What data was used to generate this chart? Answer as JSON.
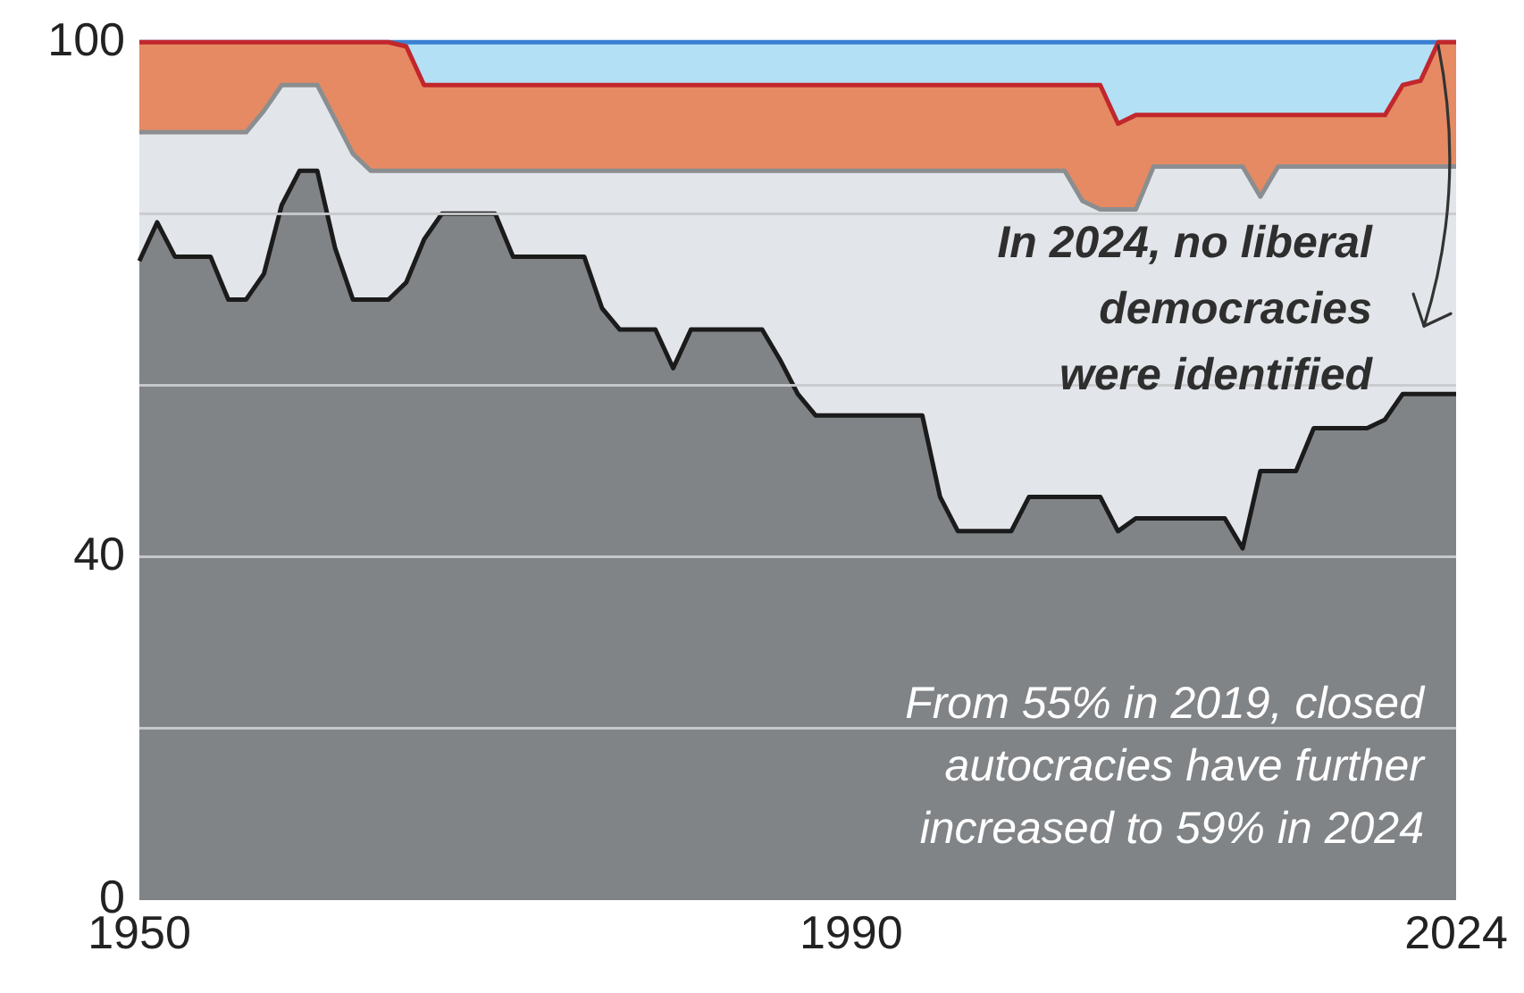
{
  "chart_data": {
    "type": "area",
    "stacked": true,
    "x": [
      1950,
      1951,
      1952,
      1953,
      1954,
      1955,
      1956,
      1957,
      1958,
      1959,
      1960,
      1961,
      1962,
      1963,
      1964,
      1965,
      1966,
      1967,
      1968,
      1969,
      1970,
      1971,
      1972,
      1973,
      1974,
      1975,
      1976,
      1977,
      1978,
      1979,
      1980,
      1981,
      1982,
      1983,
      1984,
      1985,
      1986,
      1987,
      1988,
      1989,
      1990,
      1991,
      1992,
      1993,
      1994,
      1995,
      1996,
      1997,
      1998,
      1999,
      2000,
      2001,
      2002,
      2003,
      2004,
      2005,
      2006,
      2007,
      2008,
      2009,
      2010,
      2011,
      2012,
      2013,
      2014,
      2015,
      2016,
      2017,
      2018,
      2019,
      2020,
      2021,
      2022,
      2023,
      2024
    ],
    "series": [
      {
        "color": "#818487",
        "values": [
          74.5,
          79,
          75,
          75,
          75,
          70,
          70,
          73,
          81,
          85,
          85,
          76,
          70,
          70,
          70,
          72,
          77,
          80,
          80,
          80,
          80,
          75,
          75,
          75,
          75,
          75,
          69,
          66.5,
          66.5,
          66.5,
          62,
          66.5,
          66.5,
          66.5,
          66.5,
          66.5,
          63,
          59,
          56.5,
          56.5,
          56.5,
          56.5,
          56.5,
          56.5,
          56.5,
          47,
          43,
          43,
          43,
          43,
          47,
          47,
          47,
          47,
          47,
          43,
          44.5,
          44.5,
          44.5,
          44.5,
          44.5,
          44.5,
          41,
          50,
          50,
          50,
          55,
          55,
          55,
          55,
          56,
          59,
          59,
          59,
          59
        ]
      },
      {
        "color": "#e2e5e9",
        "values": [
          15,
          10.5,
          14.5,
          14.5,
          14.5,
          19.5,
          19.5,
          19,
          14,
          10,
          10,
          15,
          17,
          15,
          15,
          13,
          8,
          5,
          5,
          5,
          5,
          10,
          10,
          10,
          10,
          10,
          16,
          18.5,
          18.5,
          18.5,
          23,
          18.5,
          18.5,
          18.5,
          18.5,
          18.5,
          22,
          26,
          28.5,
          28.5,
          28.5,
          28.5,
          28.5,
          28.5,
          28.5,
          38,
          42,
          42,
          42,
          42,
          38,
          38,
          38,
          34.5,
          33.5,
          37.5,
          36,
          41,
          41,
          41,
          41,
          41,
          44.5,
          32,
          35.5,
          35.5,
          30.5,
          30.5,
          30.5,
          30.5,
          29.5,
          26.5,
          26.5,
          26.5,
          26.5
        ]
      },
      {
        "color": "#e58a62",
        "values": [
          10.5,
          10.5,
          10.5,
          10.5,
          10.5,
          10.5,
          10.5,
          8,
          5,
          5,
          5,
          9,
          13,
          15,
          15,
          14.5,
          10,
          10,
          10,
          10,
          10,
          10,
          10,
          10,
          10,
          10,
          10,
          10,
          10,
          10,
          10,
          10,
          10,
          10,
          10,
          10,
          10,
          10,
          10,
          10,
          10,
          10,
          10,
          10,
          10,
          10,
          10,
          10,
          10,
          10,
          10,
          10,
          10,
          13.5,
          14.5,
          10,
          11,
          6,
          6,
          6,
          6,
          6,
          6,
          9.5,
          6,
          6,
          6,
          6,
          6,
          6,
          6,
          9.5,
          10,
          14.5,
          14.5
        ]
      },
      {
        "color": "#b3e0f5",
        "values": [
          0,
          0,
          0,
          0,
          0,
          0,
          0,
          0,
          0,
          0,
          0,
          0,
          0,
          0,
          0,
          0.5,
          5,
          5,
          5,
          5,
          5,
          5,
          5,
          5,
          5,
          5,
          5,
          5,
          5,
          5,
          5,
          5,
          5,
          5,
          5,
          5,
          5,
          5,
          5,
          5,
          5,
          5,
          5,
          5,
          5,
          5,
          5,
          5,
          5,
          5,
          5,
          5,
          5,
          5,
          5,
          9.5,
          8.5,
          8.5,
          8.5,
          8.5,
          8.5,
          8.5,
          8.5,
          8.5,
          8.5,
          8.5,
          8.5,
          8.5,
          8.5,
          8.5,
          8.5,
          5,
          4.5,
          0,
          0
        ]
      }
    ],
    "xlim": [
      1950,
      2024
    ],
    "xticks": [
      1950,
      1990,
      2024
    ],
    "ylim": [
      0,
      100
    ],
    "yticks": [
      0,
      {
        "value": 20,
        "label": null
      },
      40,
      {
        "value": 60,
        "label": null
      },
      {
        "value": 80,
        "label": null
      },
      100
    ],
    "grid": "y",
    "annotations": [
      {
        "text": "In 2024, no liberal\ndemocracies\nwere identified",
        "x": 2023,
        "y": 100
      },
      "From 55% in 2019, closed\nautocracies have further\nincreased to 59% in 2024"
    ]
  }
}
